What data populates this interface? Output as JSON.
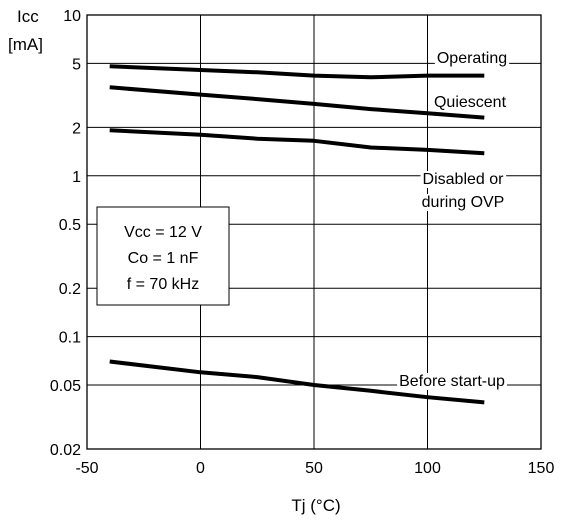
{
  "chart_data": {
    "type": "line",
    "xlabel": "Tj  (°C)",
    "ylabel": [
      "Icc",
      "[mA]"
    ],
    "xlim": [
      -50,
      150
    ],
    "ylim": [
      0.02,
      10
    ],
    "yscale": "log",
    "grid": true,
    "xticks": [
      -50,
      0,
      50,
      100,
      150
    ],
    "xtick_labels": [
      "-50",
      "0",
      "50",
      "100",
      "150"
    ],
    "yticks": [
      0.02,
      0.05,
      0.1,
      0.2,
      0.5,
      1,
      2,
      5,
      10
    ],
    "ytick_labels": [
      "0.02",
      "0.05",
      "0.1",
      "0.2",
      "0.5",
      "1",
      "2",
      "5",
      "10"
    ],
    "colors": {
      "series": "#000000",
      "grid": "#000000",
      "background": "#ffffff"
    },
    "series": [
      {
        "name": "Operating",
        "label_lines": [
          "Operating"
        ],
        "x": [
          -40,
          0,
          25,
          50,
          75,
          100,
          125
        ],
        "y": [
          4.8,
          4.55,
          4.4,
          4.2,
          4.1,
          4.2,
          4.2
        ]
      },
      {
        "name": "Quiescent",
        "label_lines": [
          "Quiescent"
        ],
        "x": [
          -40,
          0,
          25,
          50,
          75,
          100,
          125
        ],
        "y": [
          3.55,
          3.2,
          3.0,
          2.8,
          2.6,
          2.45,
          2.3
        ]
      },
      {
        "name": "Disabled or during OVP",
        "label_lines": [
          "Disabled or",
          "during OVP"
        ],
        "x": [
          -40,
          0,
          25,
          50,
          75,
          100,
          125
        ],
        "y": [
          1.92,
          1.8,
          1.7,
          1.65,
          1.5,
          1.45,
          1.38
        ]
      },
      {
        "name": "Before start-up",
        "label_lines": [
          "Before start-up"
        ],
        "x": [
          -40,
          0,
          25,
          50,
          75,
          100,
          125
        ],
        "y": [
          0.07,
          0.06,
          0.056,
          0.05,
          0.046,
          0.042,
          0.039
        ]
      }
    ],
    "annotation": [
      "Vcc = 12 V",
      "Co = 1 nF",
      "f = 70 kHz"
    ]
  }
}
